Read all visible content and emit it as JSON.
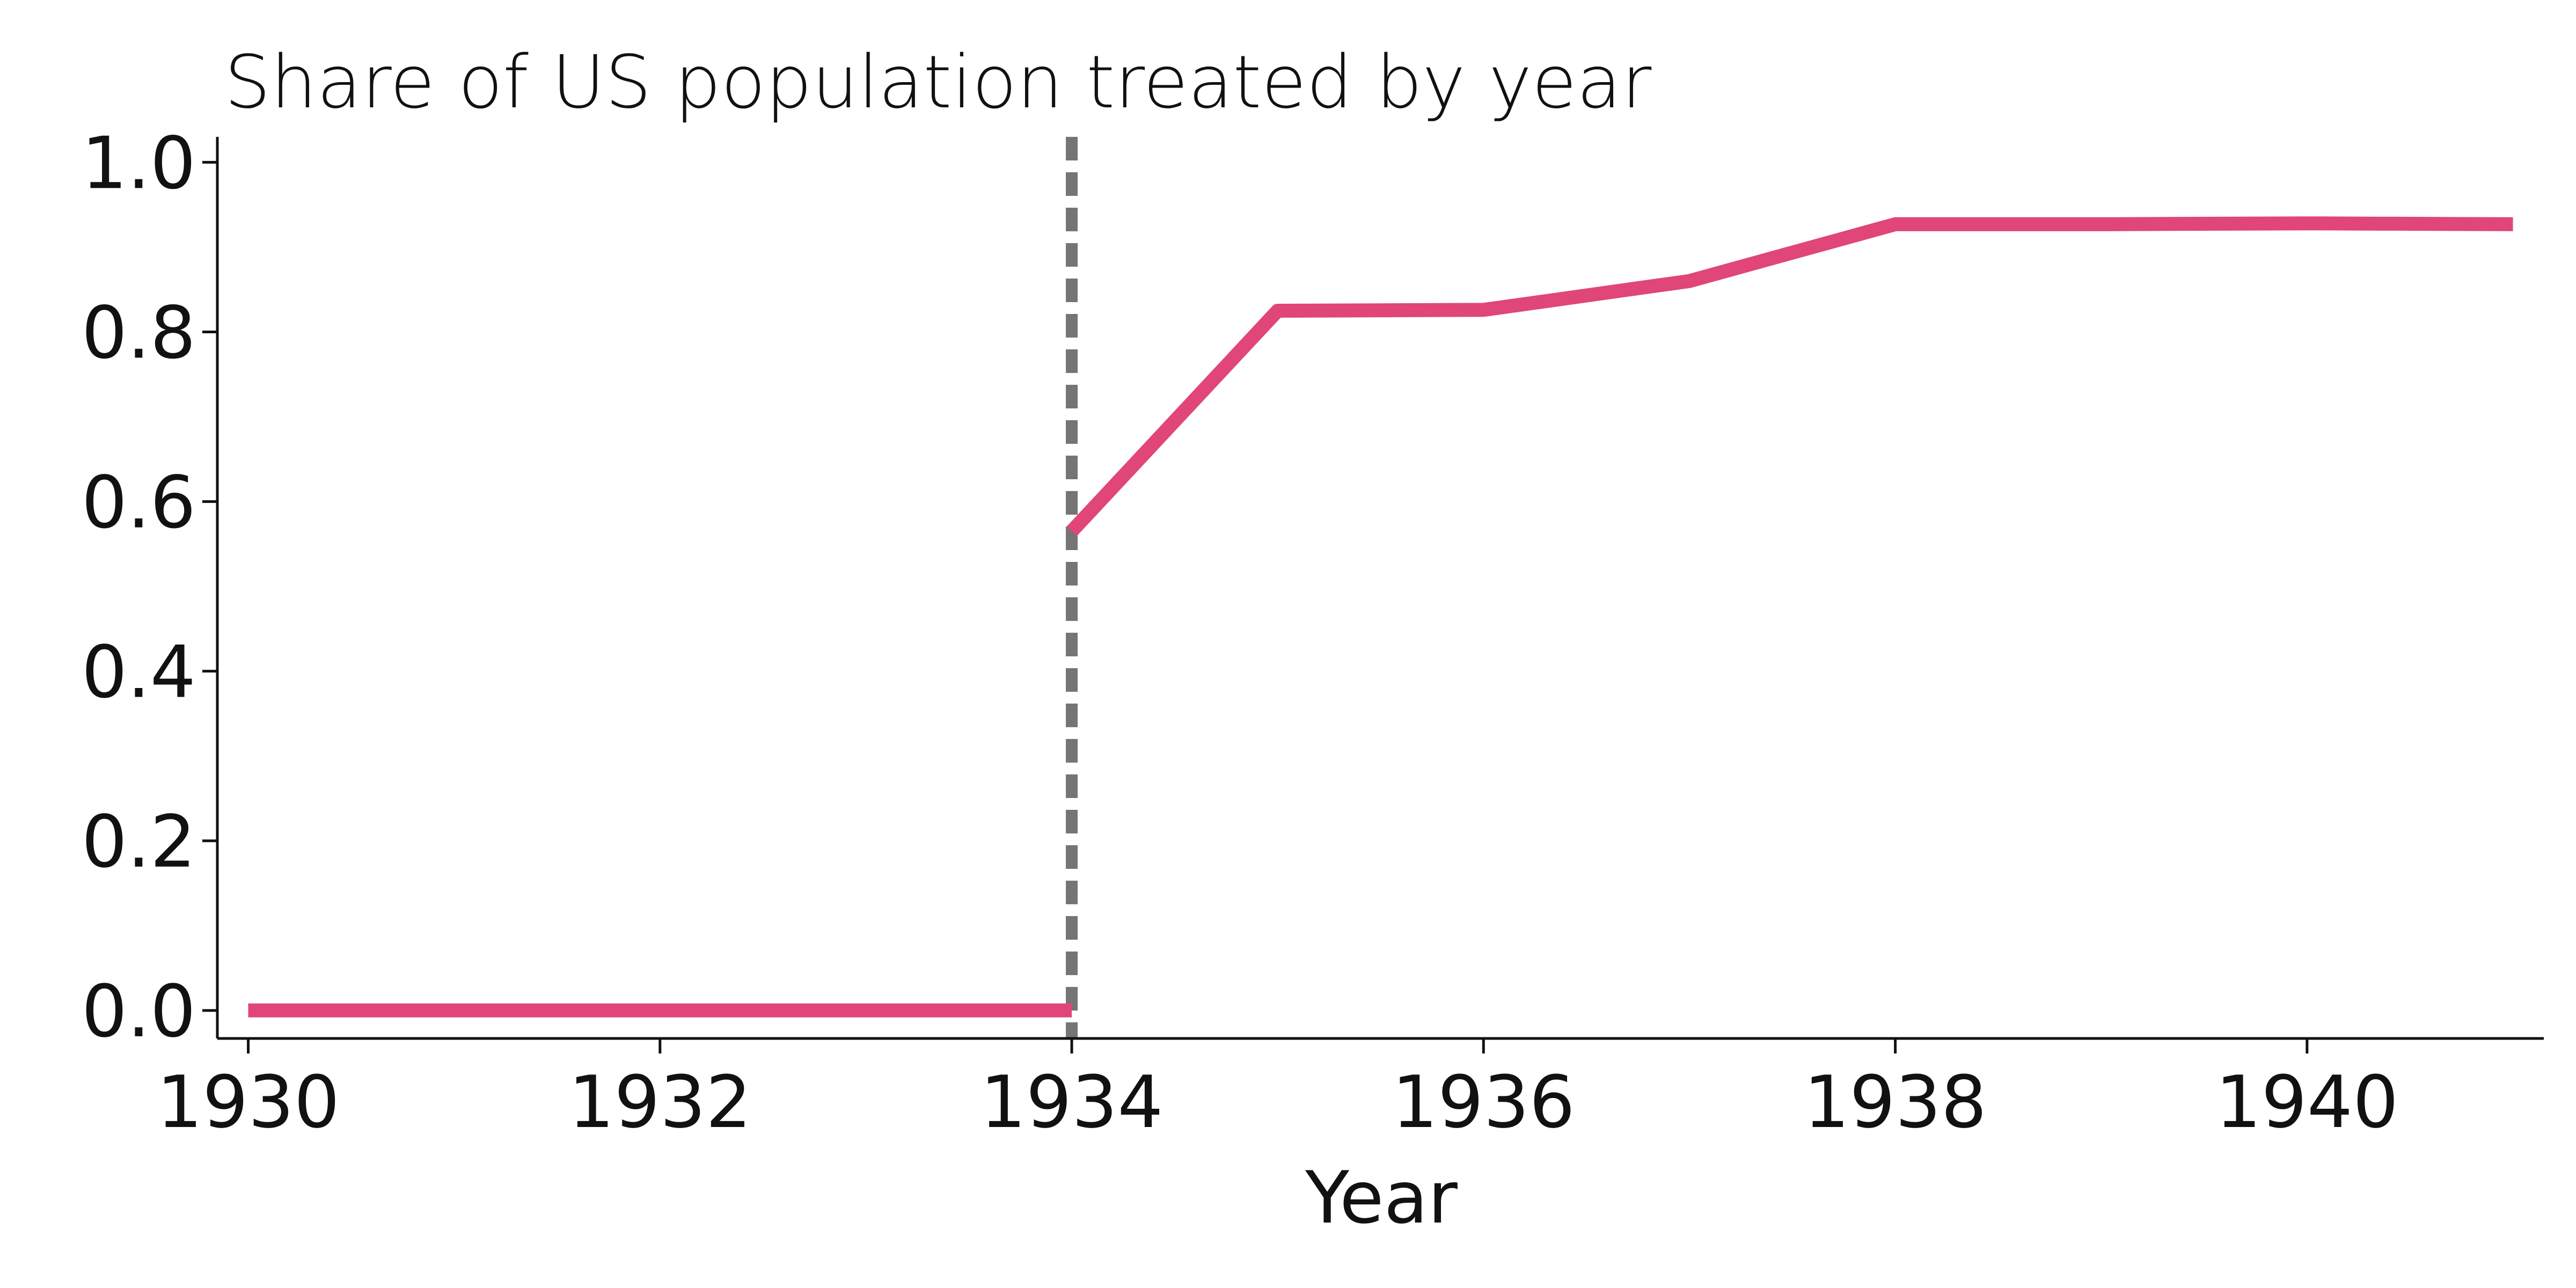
{
  "chart_data": {
    "type": "line",
    "title": "Share of US population treated by year",
    "xlabel": "Year",
    "ylabel": "",
    "xlim": [
      1929.85,
      1941.15
    ],
    "ylim": [
      -0.033,
      1.03
    ],
    "x_ticks": [
      1930,
      1932,
      1934,
      1936,
      1938,
      1940
    ],
    "y_ticks": [
      0.0,
      0.2,
      0.4,
      0.6,
      0.8,
      1.0
    ],
    "y_tick_labels": [
      "0.0",
      "0.2",
      "0.4",
      "0.6",
      "0.8",
      "1.0"
    ],
    "grid": false,
    "reference_line": {
      "axis": "x",
      "value": 1934,
      "style": "dashed",
      "color": "#757575"
    },
    "series": [
      {
        "color": "#E04677",
        "segments": [
          {
            "x": [
              1930,
              1931,
              1932,
              1933,
              1934
            ],
            "y": [
              0.0,
              0.0,
              0.0,
              0.0,
              0.0
            ]
          },
          {
            "x": [
              1934,
              1935,
              1936,
              1937,
              1938,
              1939,
              1940,
              1941
            ],
            "y": [
              0.565,
              0.825,
              0.826,
              0.86,
              0.927,
              0.927,
              0.928,
              0.927
            ]
          }
        ]
      }
    ]
  }
}
